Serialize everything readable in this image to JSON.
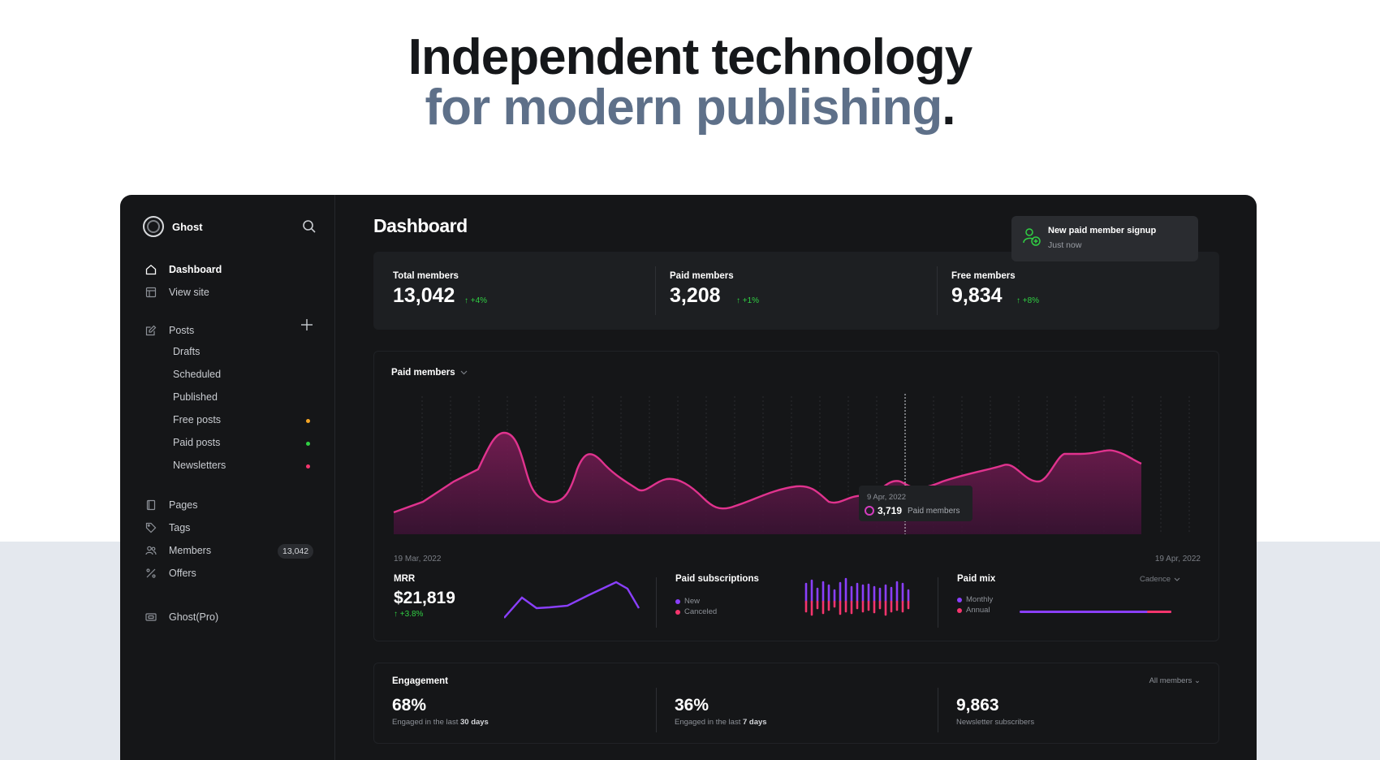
{
  "hero": {
    "line1": "Independent technology",
    "line2": "for modern publishing",
    "period": "."
  },
  "sidebar": {
    "brand": "Ghost",
    "nav": [
      {
        "label": "Dashboard",
        "icon": "home-icon",
        "active": true
      },
      {
        "label": "View site",
        "icon": "layout-icon"
      }
    ],
    "posts": {
      "label": "Posts",
      "icon": "edit-icon",
      "sub": [
        {
          "label": "Drafts"
        },
        {
          "label": "Scheduled"
        },
        {
          "label": "Published"
        },
        {
          "label": "Free posts",
          "dot_color": "#f5a524"
        },
        {
          "label": "Paid posts",
          "dot_color": "#30cf43"
        },
        {
          "label": "Newsletters",
          "dot_color": "#f5356d"
        }
      ]
    },
    "manage": [
      {
        "label": "Pages",
        "icon": "page-icon"
      },
      {
        "label": "Tags",
        "icon": "tag-icon"
      },
      {
        "label": "Members",
        "icon": "members-icon",
        "count": "13,042"
      },
      {
        "label": "Offers",
        "icon": "percent-icon"
      }
    ],
    "pro": {
      "label": "Ghost(Pro)",
      "icon": "pro-icon"
    }
  },
  "main": {
    "title": "Dashboard",
    "toast": {
      "title": "New paid member signup",
      "subtitle": "Just now"
    },
    "stats": [
      {
        "label": "Total members",
        "value": "13,042",
        "delta": "↑ +4%"
      },
      {
        "label": "Paid members",
        "value": "3,208",
        "delta": "↑ +1%"
      },
      {
        "label": "Free members",
        "value": "9,834",
        "delta": "↑ +8%"
      }
    ],
    "paid_chart": {
      "title": "Paid members",
      "start_date": "19 Mar, 2022",
      "end_date": "19 Apr, 2022",
      "tooltip": {
        "date": "9 Apr, 2022",
        "value": "3,719",
        "label": "Paid members"
      }
    },
    "mrr": {
      "title": "MRR",
      "value": "$21,819",
      "delta": "↑ +3.8%"
    },
    "paid_subs": {
      "title": "Paid subscriptions",
      "legend": [
        "New",
        "Canceled"
      ]
    },
    "paid_mix": {
      "title": "Paid mix",
      "filter": "Cadence",
      "legend": [
        "Monthly",
        "Annual"
      ]
    },
    "engagement": {
      "title": "Engagement",
      "filter": "All members",
      "items": [
        {
          "value": "68%",
          "sub_prefix": "Engaged in the last ",
          "sub_bold": "30 days"
        },
        {
          "value": "36%",
          "sub_prefix": "Engaged in the last ",
          "sub_bold": "7 days"
        },
        {
          "value": "9,863",
          "sub_prefix": "Newsletter subscribers",
          "sub_bold": ""
        }
      ]
    },
    "colors": {
      "accent_pink": "#e0338e",
      "accent_purple": "#8a3ffc",
      "positive_green": "#30cf43",
      "canceled_red": "#f5356d"
    }
  }
}
